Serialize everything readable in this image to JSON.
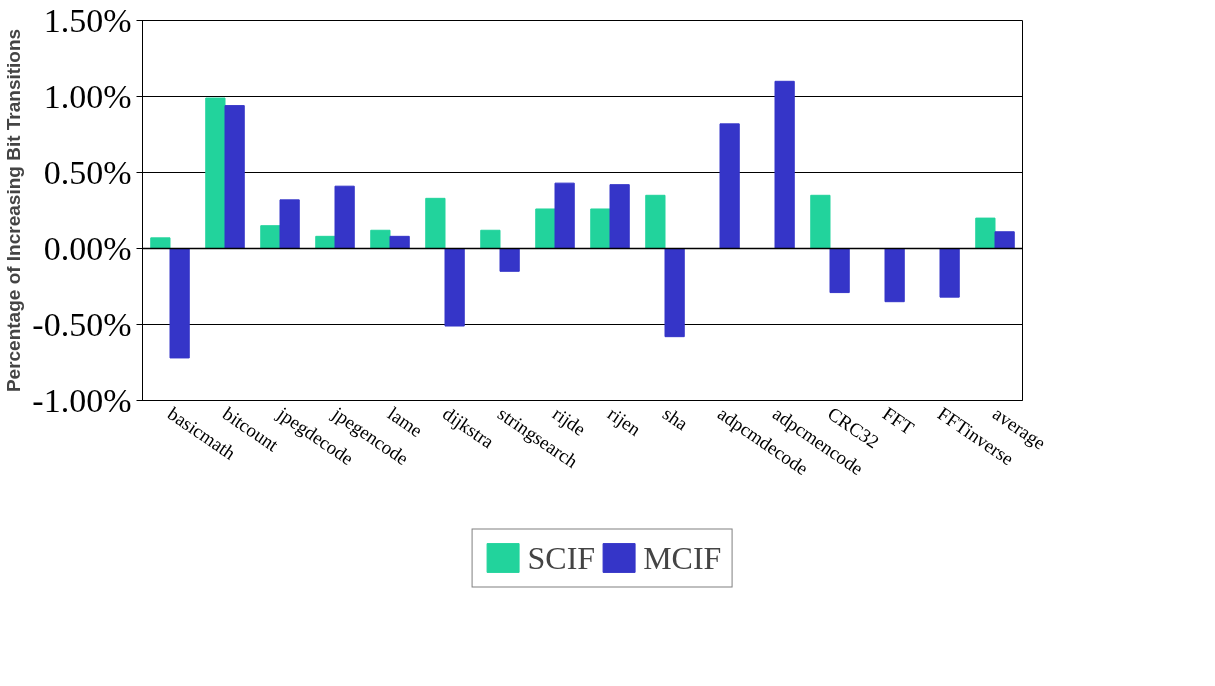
{
  "chart_data": {
    "type": "bar",
    "ylabel": "Percentage of Increasing Bit Transitions",
    "categories": [
      "basicmath",
      "bitcount",
      "jpegdecode",
      "jpegencode",
      "lame",
      "dijkstra",
      "stringsearch",
      "rijde",
      "rijen",
      "sha",
      "adpcmdecode",
      "adpcmencode",
      "CRC32",
      "FFT",
      "FFTinverse",
      "average"
    ],
    "series": [
      {
        "name": "SCIF",
        "color": "#22d39c",
        "values": [
          0.07,
          0.99,
          0.15,
          0.08,
          0.12,
          0.33,
          0.12,
          0.26,
          0.26,
          0.35,
          0,
          0,
          0.35,
          0,
          0,
          0.2
        ]
      },
      {
        "name": "MCIF",
        "color": "#3535c8",
        "values": [
          -0.72,
          0.94,
          0.32,
          0.41,
          0.08,
          -0.51,
          -0.15,
          0.43,
          0.42,
          -0.58,
          0.82,
          1.1,
          -0.29,
          -0.35,
          -0.32,
          0.11
        ]
      }
    ],
    "ylim": [
      -1,
      1.5
    ],
    "yticks": [
      {
        "value": -1,
        "label": "-1.00%"
      },
      {
        "value": -0.5,
        "label": "-0.50%"
      },
      {
        "value": 0,
        "label": "0.00%"
      },
      {
        "value": 0.5,
        "label": "0.50%"
      },
      {
        "value": 1,
        "label": "1.00%"
      },
      {
        "value": 1.5,
        "label": "1.50%"
      }
    ],
    "grid": "y",
    "legend": "bottom"
  }
}
